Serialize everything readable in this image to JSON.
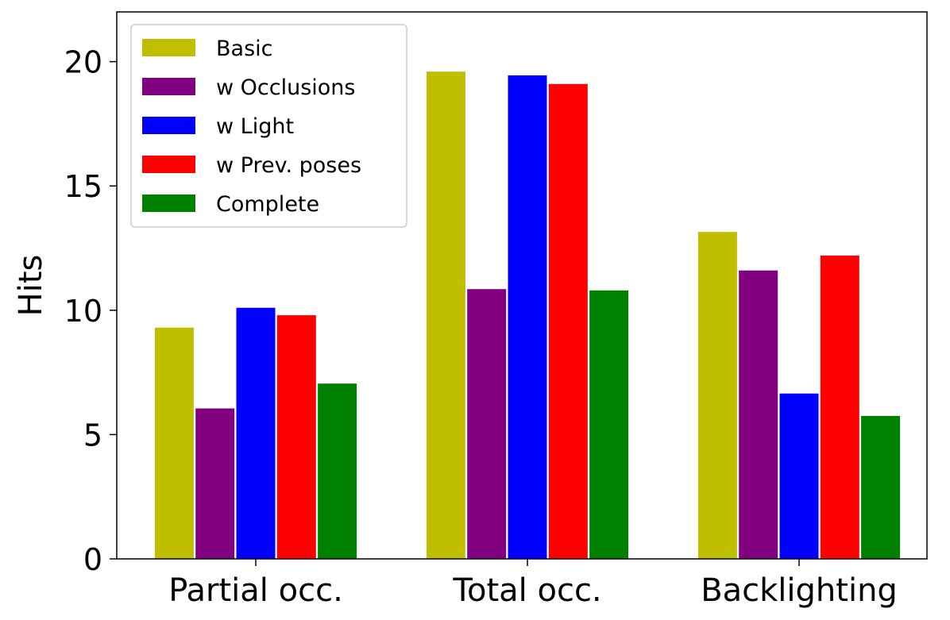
{
  "chart_data": {
    "type": "bar",
    "title": "",
    "xlabel": "",
    "ylabel": "Hits",
    "categories": [
      "Partial occ.",
      "Total occ.",
      "Backlighting"
    ],
    "ylim": [
      0,
      22
    ],
    "yticks": [
      0,
      5,
      10,
      15,
      20
    ],
    "grid": false,
    "legend_position": "top-left",
    "series": [
      {
        "name": "Basic",
        "color": "#bfbf00",
        "values": [
          9.3,
          19.6,
          13.15
        ]
      },
      {
        "name": "w Occlusions",
        "color": "#800080",
        "values": [
          6.05,
          10.85,
          11.6
        ]
      },
      {
        "name": "w Light",
        "color": "#0000ff",
        "values": [
          10.1,
          19.45,
          6.65
        ]
      },
      {
        "name": "w Prev. poses",
        "color": "#ff0000",
        "values": [
          9.8,
          19.1,
          12.2
        ]
      },
      {
        "name": "Complete",
        "color": "#008000",
        "values": [
          7.05,
          10.8,
          5.75
        ]
      }
    ]
  }
}
